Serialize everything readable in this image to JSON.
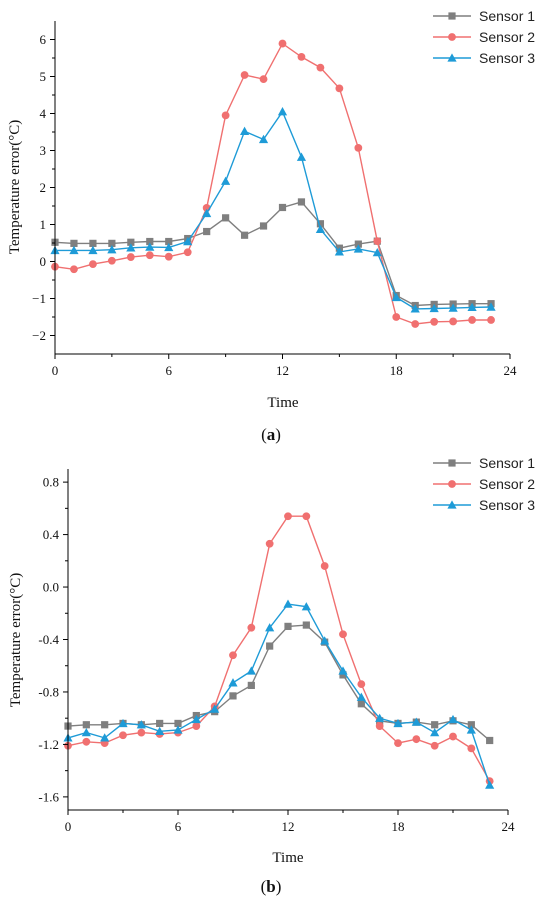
{
  "chart_data": [
    {
      "type": "line",
      "caption_open": "(",
      "caption_letter": "a",
      "caption_close": ")",
      "xlabel": "Time",
      "ylabel": "Temperature error(°C)",
      "xlim": [
        0,
        24
      ],
      "ylim": [
        -2.5,
        6.5
      ],
      "xticks": [
        0,
        6,
        12,
        18,
        24
      ],
      "yticks": [
        -2,
        -1,
        0,
        1,
        2,
        3,
        4,
        5,
        6
      ],
      "ytick_labels": [
        "−2",
        "−1",
        "0",
        "1",
        "2",
        "3",
        "4",
        "5",
        "6"
      ],
      "legend_position": "top-right",
      "x": [
        0,
        1,
        2,
        3,
        4,
        5,
        6,
        7,
        8,
        9,
        10,
        11,
        12,
        13,
        14,
        15,
        16,
        17,
        18,
        19,
        20,
        21,
        22,
        23
      ],
      "series": [
        {
          "name": "Sensor 1",
          "color": "#7f7f7f",
          "marker": "square",
          "values": [
            0.52,
            0.49,
            0.49,
            0.49,
            0.52,
            0.54,
            0.54,
            0.62,
            0.81,
            1.18,
            0.71,
            0.96,
            1.46,
            1.61,
            1.02,
            0.36,
            0.47,
            0.55,
            -0.92,
            -1.19,
            -1.16,
            -1.15,
            -1.14,
            -1.14
          ]
        },
        {
          "name": "Sensor 2",
          "color": "#f07070",
          "marker": "circle",
          "values": [
            -0.14,
            -0.21,
            -0.07,
            0.02,
            0.12,
            0.17,
            0.13,
            0.25,
            1.45,
            3.95,
            5.04,
            4.93,
            5.89,
            5.53,
            5.24,
            4.68,
            3.07,
            0.55,
            -1.5,
            -1.69,
            -1.63,
            -1.62,
            -1.58,
            -1.58
          ]
        },
        {
          "name": "Sensor 3",
          "color": "#1e9bd7",
          "marker": "triangle",
          "values": [
            0.3,
            0.3,
            0.3,
            0.32,
            0.37,
            0.39,
            0.38,
            0.54,
            1.3,
            2.17,
            3.52,
            3.3,
            4.05,
            2.82,
            0.87,
            0.26,
            0.34,
            0.24,
            -0.97,
            -1.28,
            -1.27,
            -1.26,
            -1.24,
            -1.23
          ]
        }
      ]
    },
    {
      "type": "line",
      "caption_open": "(",
      "caption_letter": "b",
      "caption_close": ")",
      "xlabel": "Time",
      "ylabel": "Temperature error(°C)",
      "xlim": [
        0,
        24
      ],
      "ylim": [
        -1.7,
        0.9
      ],
      "xticks": [
        0,
        6,
        12,
        18,
        24
      ],
      "yticks": [
        -1.6,
        -1.2,
        -0.8,
        -0.4,
        0.0,
        0.4,
        0.8
      ],
      "ytick_labels": [
        "-1.6",
        "-1.2",
        "-0.8",
        "-0.4",
        "0.0",
        "0.4",
        "0.8"
      ],
      "legend_position": "top-right",
      "x": [
        0,
        1,
        2,
        3,
        4,
        5,
        6,
        7,
        8,
        9,
        10,
        11,
        12,
        13,
        14,
        15,
        16,
        17,
        18,
        19,
        20,
        21,
        22,
        23
      ],
      "series": [
        {
          "name": "Sensor 1",
          "color": "#7f7f7f",
          "marker": "square",
          "values": [
            -1.06,
            -1.05,
            -1.05,
            -1.04,
            -1.05,
            -1.04,
            -1.04,
            -0.98,
            -0.95,
            -0.83,
            -0.75,
            -0.45,
            -0.3,
            -0.29,
            -0.42,
            -0.67,
            -0.89,
            -1.02,
            -1.04,
            -1.03,
            -1.05,
            -1.02,
            -1.05,
            -1.17
          ]
        },
        {
          "name": "Sensor 2",
          "color": "#f07070",
          "marker": "circle",
          "values": [
            -1.21,
            -1.18,
            -1.19,
            -1.13,
            -1.11,
            -1.12,
            -1.11,
            -1.06,
            -0.91,
            -0.52,
            -0.31,
            0.33,
            0.54,
            0.54,
            0.16,
            -0.36,
            -0.74,
            -1.06,
            -1.19,
            -1.16,
            -1.21,
            -1.14,
            -1.23,
            -1.48
          ]
        },
        {
          "name": "Sensor 3",
          "color": "#1e9bd7",
          "marker": "triangle",
          "values": [
            -1.15,
            -1.11,
            -1.15,
            -1.04,
            -1.05,
            -1.1,
            -1.09,
            -1.01,
            -0.93,
            -0.73,
            -0.64,
            -0.31,
            -0.13,
            -0.15,
            -0.41,
            -0.64,
            -0.84,
            -1.0,
            -1.04,
            -1.03,
            -1.11,
            -1.01,
            -1.09,
            -1.51
          ]
        }
      ]
    }
  ]
}
